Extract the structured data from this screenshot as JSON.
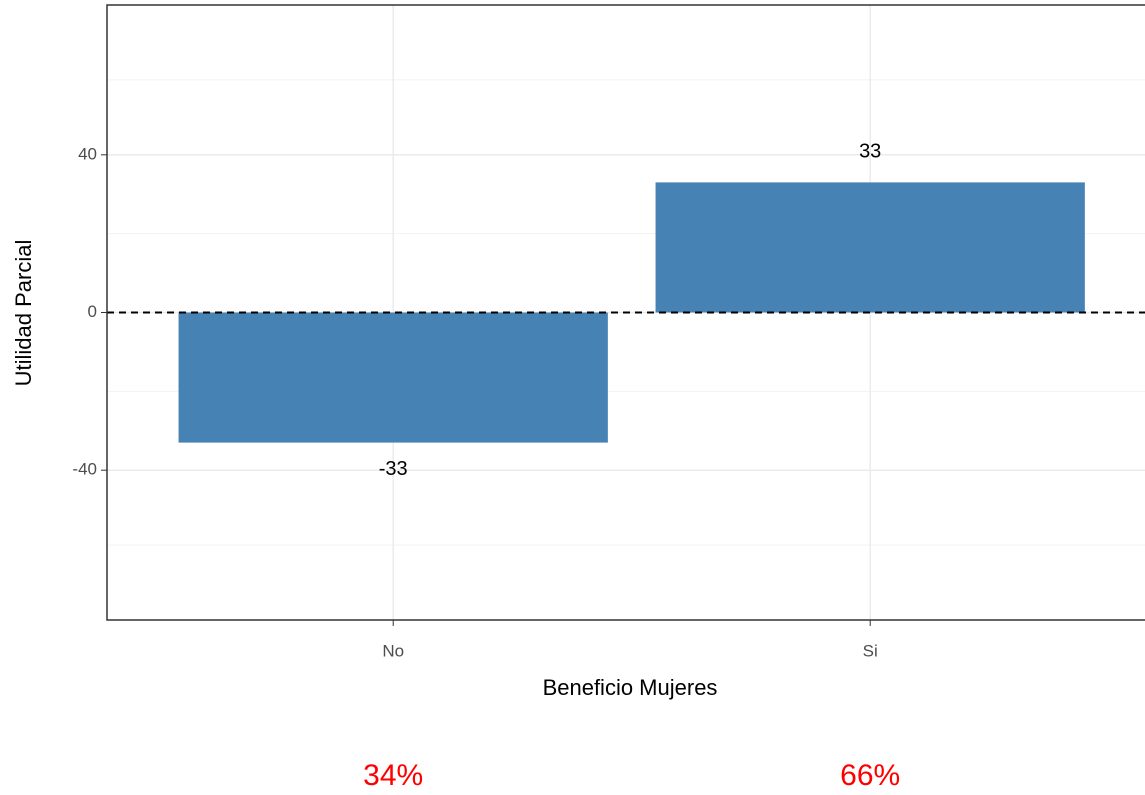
{
  "chart_data": {
    "type": "bar",
    "categories": [
      "No",
      "Si"
    ],
    "values": [
      -33,
      33
    ],
    "color": "#4682b4",
    "xlabel": "Beneficio Mujeres",
    "ylabel": "Utilidad Parcial",
    "ylim": [
      -78,
      78
    ],
    "yticks": [
      -40,
      0,
      40
    ],
    "grid": true,
    "hline": 0,
    "annotations": [
      "34%",
      "66%"
    ],
    "annotation_color": "#ff0000"
  }
}
